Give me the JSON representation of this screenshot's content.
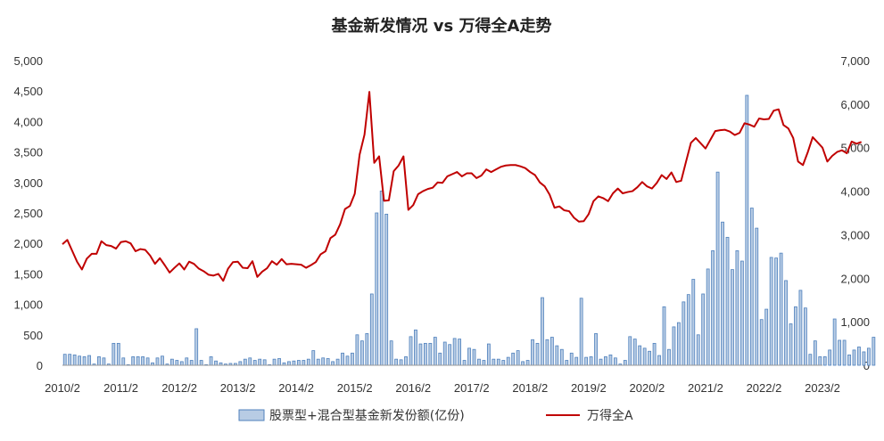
{
  "chart_data": {
    "type": "bar+line",
    "title": "基金新发情况 vs 万得全A走势",
    "x_tick_labels": [
      "2010/2",
      "2011/2",
      "2012/2",
      "2013/2",
      "2014/2",
      "2015/2",
      "2016/2",
      "2017/2",
      "2018/2",
      "2019/2",
      "2020/2",
      "2021/2",
      "2022/2",
      "2023/2"
    ],
    "y_left": {
      "min": 0,
      "max": 5000,
      "tick_labels": [
        "0",
        "500",
        "1,000",
        "1,500",
        "2,000",
        "2,500",
        "3,000",
        "3,500",
        "4,000",
        "4,500",
        "5,000"
      ]
    },
    "y_right": {
      "min": 0,
      "max": 7000,
      "tick_labels": [
        "0",
        "1,000",
        "2,000",
        "3,000",
        "4,000",
        "5,000",
        "6,000",
        "7,000"
      ]
    },
    "grid": "none",
    "legend_position": "bottom",
    "colors": {
      "bar_fill": "#b8cce4",
      "bar_stroke": "#4f81bd",
      "line": "#c00000"
    },
    "series": [
      {
        "name": "股票型+混合型基金新发份额(亿份)",
        "kind": "bar",
        "axis": "left",
        "start": "2010-02",
        "values": [
          180,
          180,
          170,
          150,
          140,
          160,
          20,
          140,
          120,
          20,
          360,
          360,
          120,
          10,
          140,
          140,
          140,
          120,
          40,
          120,
          150,
          20,
          100,
          80,
          60,
          120,
          80,
          600,
          80,
          10,
          140,
          70,
          40,
          20,
          30,
          30,
          60,
          100,
          120,
          80,
          100,
          90,
          10,
          100,
          110,
          40,
          60,
          70,
          80,
          80,
          100,
          240,
          100,
          120,
          110,
          60,
          100,
          200,
          150,
          200,
          500,
          400,
          520,
          1170,
          2500,
          2860,
          2480,
          400,
          100,
          90,
          140,
          470,
          580,
          350,
          360,
          360,
          460,
          200,
          380,
          340,
          440,
          430,
          80,
          280,
          260,
          100,
          80,
          350,
          100,
          100,
          80,
          130,
          200,
          240,
          60,
          80,
          420,
          360,
          1110,
          420,
          460,
          320,
          260,
          80,
          200,
          130,
          1100,
          130,
          140,
          520,
          100,
          140,
          170,
          120,
          20,
          80,
          470,
          430,
          320,
          280,
          230,
          360,
          160,
          960,
          260,
          630,
          700,
          1040,
          1160,
          1410,
          500,
          1170,
          1580,
          1880,
          3170,
          2350,
          2100,
          1570,
          1880,
          1710,
          4430,
          2580,
          2250,
          750,
          920,
          1770,
          1760,
          1840,
          1390,
          680,
          960,
          1230,
          940,
          180,
          400,
          140,
          140,
          250,
          760,
          410,
          410,
          170,
          250,
          300,
          220,
          280,
          460
        ]
      },
      {
        "name": "万得全A",
        "kind": "line",
        "axis": "right",
        "start": "2010-02",
        "values": [
          2780,
          2880,
          2630,
          2380,
          2200,
          2450,
          2560,
          2560,
          2850,
          2760,
          2740,
          2680,
          2830,
          2850,
          2800,
          2620,
          2670,
          2650,
          2520,
          2330,
          2460,
          2300,
          2130,
          2240,
          2340,
          2200,
          2380,
          2330,
          2220,
          2160,
          2080,
          2060,
          2100,
          1940,
          2220,
          2370,
          2380,
          2240,
          2230,
          2390,
          2030,
          2150,
          2230,
          2390,
          2310,
          2440,
          2320,
          2330,
          2320,
          2310,
          2240,
          2300,
          2370,
          2550,
          2620,
          2920,
          3000,
          3240,
          3590,
          3660,
          3940,
          4840,
          5300,
          6280,
          4650,
          4800,
          3780,
          3790,
          4460,
          4590,
          4800,
          3570,
          3680,
          3930,
          4000,
          4050,
          4080,
          4200,
          4190,
          4340,
          4390,
          4440,
          4340,
          4410,
          4410,
          4300,
          4360,
          4500,
          4440,
          4500,
          4560,
          4590,
          4600,
          4600,
          4570,
          4530,
          4440,
          4370,
          4200,
          4110,
          3920,
          3620,
          3650,
          3560,
          3540,
          3390,
          3300,
          3310,
          3470,
          3770,
          3880,
          3840,
          3770,
          3950,
          4060,
          3950,
          3980,
          4000,
          4090,
          4210,
          4110,
          4060,
          4190,
          4370,
          4280,
          4430,
          4210,
          4240,
          4680,
          5110,
          5220,
          5100,
          4980,
          5180,
          5380,
          5400,
          5410,
          5370,
          5290,
          5340,
          5560,
          5530,
          5480,
          5670,
          5650,
          5660,
          5850,
          5880,
          5520,
          5440,
          5220,
          4680,
          4600,
          4900,
          5240,
          5120,
          5000,
          4680,
          4810,
          4900,
          4940,
          4870,
          5140,
          5090,
          5130
        ]
      }
    ]
  }
}
